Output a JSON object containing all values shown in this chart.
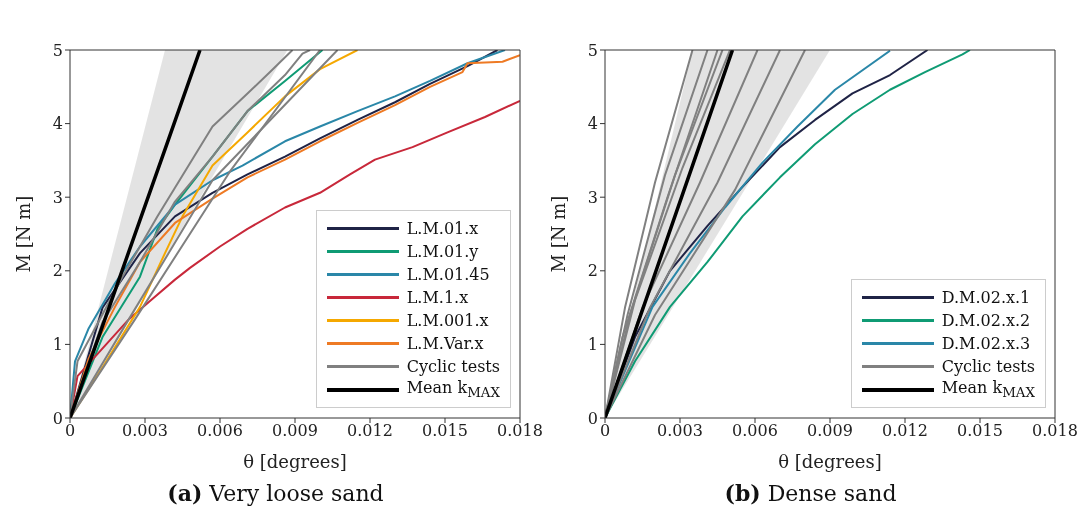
{
  "chart_data": [
    {
      "type": "line",
      "title": "(a) Very loose sand",
      "xlabel": "θ [degrees]",
      "ylabel": "M  [N m]",
      "xlim": [
        0,
        0.018
      ],
      "xticks": [
        0,
        0.003,
        0.006,
        0.009,
        0.012,
        0.015,
        0.018
      ],
      "ylim": [
        0,
        5
      ],
      "yticks": [
        0,
        1,
        2,
        3,
        4,
        5
      ],
      "legend": "bottom right",
      "series": [
        {
          "name": "L.M.01.x",
          "color": "#1f2346",
          "x": [
            0,
            0.0013,
            0.0028,
            0.0042,
            0.0057,
            0.0071,
            0.0086,
            0.01,
            0.0115,
            0.013,
            0.0144,
            0.0159,
            0.0171
          ],
          "values": [
            0,
            1.5,
            2.24,
            2.74,
            3.06,
            3.31,
            3.55,
            3.8,
            4.05,
            4.29,
            4.54,
            4.78,
            5
          ]
        },
        {
          "name": "L.M.01.y",
          "color": "#0f9b74",
          "x": [
            0,
            0.0013,
            0.0028,
            0.0035,
            0.0042,
            0.0057,
            0.0071,
            0.0086,
            0.0101
          ],
          "values": [
            0,
            1.1,
            1.92,
            2.57,
            2.9,
            3.55,
            4.17,
            4.58,
            5
          ]
        },
        {
          "name": "L.M.01.45",
          "color": "#2a87a8",
          "x": [
            0,
            0.0002,
            0.00075,
            0.0018,
            0.0028,
            0.0042,
            0.0057,
            0.0069,
            0.0086,
            0.01,
            0.0115,
            0.013,
            0.0144,
            0.0159,
            0.0174
          ],
          "values": [
            0,
            0.77,
            1.22,
            1.83,
            2.33,
            2.9,
            3.23,
            3.43,
            3.76,
            3.96,
            4.17,
            4.37,
            4.58,
            4.82,
            5
          ]
        },
        {
          "name": "L.M.1.x",
          "color": "#c8283a",
          "x": [
            0,
            0.0003,
            0.00235,
            0.0032,
            0.0042,
            0.0048,
            0.006,
            0.0071,
            0.0086,
            0.01,
            0.0112,
            0.0122,
            0.0137,
            0.0151,
            0.0166,
            0.018
          ],
          "values": [
            0,
            0.57,
            1.34,
            1.59,
            1.88,
            2.04,
            2.33,
            2.57,
            2.86,
            3.06,
            3.31,
            3.51,
            3.68,
            3.88,
            4.09,
            4.31
          ]
        },
        {
          "name": "L.M.001.x",
          "color": "#f5a800",
          "x": [
            0,
            0.0013,
            0.0028,
            0.0038,
            0.0045,
            0.0057,
            0.0071,
            0.0086,
            0.01,
            0.0115
          ],
          "values": [
            0,
            0.69,
            1.51,
            2.24,
            2.74,
            3.43,
            3.88,
            4.37,
            4.74,
            5
          ]
        },
        {
          "name": "L.M.Var.x",
          "color": "#ee7a24",
          "x": [
            0,
            0.00075,
            0.0018,
            0.0028,
            0.0042,
            0.0057,
            0.0071,
            0.0086,
            0.01,
            0.0115,
            0.013,
            0.0144,
            0.0157,
            0.0159,
            0.0173,
            0.018
          ],
          "values": [
            0,
            0.81,
            1.51,
            2.12,
            2.65,
            2.98,
            3.27,
            3.51,
            3.76,
            4.01,
            4.25,
            4.5,
            4.7,
            4.82,
            4.84,
            4.93
          ]
        },
        {
          "name": "Cyclic tests",
          "color": "#808080",
          "x": [
            0,
            0.0003,
            0.0021,
            0.0035,
            0.0057,
            0.0071,
            0.008,
            0.0089
          ],
          "values": [
            0,
            0.77,
            1.92,
            2.74,
            3.96,
            4.41,
            4.7,
            5
          ]
        },
        {
          "color": "#808080",
          "x": [
            0,
            0.0013,
            0.0028,
            0.0042,
            0.0057,
            0.0071,
            0.0086,
            0.0093,
            0.0096
          ],
          "values": [
            0,
            1.3,
            2.12,
            2.94,
            3.55,
            4.17,
            4.66,
            4.95,
            5
          ]
        },
        {
          "color": "#808080",
          "x": [
            0,
            0.00235,
            0.0057,
            0.0107
          ],
          "values": [
            0,
            1.34,
            3.23,
            5
          ]
        },
        {
          "color": "#808080",
          "x": [
            0,
            0.0026,
            0.0064,
            0.01
          ],
          "values": [
            0,
            1.34,
            3.35,
            5
          ]
        },
        {
          "name": "Mean k$_{MAX}$",
          "color": "#000000",
          "x": [
            0,
            0.0038,
            0.0052,
            0.0087
          ],
          "values": [
            0,
            3.65,
            5,
            null
          ],
          "lower": [
            0,
            2.18,
            2.99,
            5
          ],
          "upper": [
            0,
            5,
            5,
            5
          ]
        }
      ]
    },
    {
      "type": "line",
      "title": "(b) Dense sand",
      "xlabel": "θ [degrees]",
      "ylabel": "M  [N m]",
      "xlim": [
        0,
        0.018
      ],
      "xticks": [
        0,
        0.003,
        0.006,
        0.009,
        0.012,
        0.015,
        0.018
      ],
      "ylim": [
        0,
        5
      ],
      "yticks": [
        0,
        1,
        2,
        3,
        4,
        5
      ],
      "legend": "bottom right",
      "series": [
        {
          "name": "D.M.02.x.1",
          "color": "#1f2346",
          "x": [
            0,
            0.0012,
            0.0026,
            0.0041,
            0.0055,
            0.007,
            0.0084,
            0.0099,
            0.0114,
            0.0129
          ],
          "values": [
            0,
            1.1,
            2,
            2.61,
            3.14,
            3.68,
            4.05,
            4.41,
            4.66,
            5
          ]
        },
        {
          "name": "D.M.02.x.2",
          "color": "#0f9b74",
          "x": [
            0,
            0.0012,
            0.0026,
            0.0041,
            0.0055,
            0.007,
            0.0084,
            0.0099,
            0.0114,
            0.0128,
            0.0143,
            0.0146
          ],
          "values": [
            0,
            0.77,
            1.51,
            2.12,
            2.74,
            3.27,
            3.72,
            4.13,
            4.46,
            4.7,
            4.94,
            5
          ]
        },
        {
          "name": "D.M.02.x.3",
          "color": "#2a87a8",
          "x": [
            0,
            0.0006,
            0.0019,
            0.0034,
            0.0048,
            0.0063,
            0.0077,
            0.0092,
            0.0114
          ],
          "values": [
            0,
            0.48,
            1.51,
            2.24,
            2.86,
            3.47,
            3.96,
            4.46,
            4.99
          ]
        },
        {
          "name": "Cyclic tests",
          "color": "#808080",
          "x": [
            0,
            0.0008,
            0.002,
            0.0035
          ],
          "values": [
            0,
            1.5,
            3.2,
            5
          ]
        },
        {
          "color": "#808080",
          "x": [
            0,
            0.0009,
            0.0024,
            0.0041
          ],
          "values": [
            0,
            1.4,
            3.3,
            5
          ]
        },
        {
          "color": "#808080",
          "x": [
            0,
            0.0007,
            0.0025,
            0.0045
          ],
          "values": [
            0,
            1.1,
            3,
            5
          ]
        },
        {
          "color": "#808080",
          "x": [
            0,
            0.001,
            0.0028,
            0.0047
          ],
          "values": [
            0,
            1.4,
            3.3,
            5
          ]
        },
        {
          "color": "#808080",
          "x": [
            0,
            0.0012,
            0.0031,
            0.005
          ],
          "values": [
            0,
            1.6,
            3.4,
            5
          ]
        },
        {
          "color": "#808080",
          "x": [
            0,
            0.0015,
            0.0038,
            0.0061
          ],
          "values": [
            0,
            1.5,
            3.2,
            5
          ]
        },
        {
          "color": "#808080",
          "x": [
            0,
            0.0018,
            0.0045,
            0.007
          ],
          "values": [
            0,
            1.5,
            3.2,
            5
          ]
        },
        {
          "color": "#808080",
          "x": [
            0,
            0.002,
            0.0052,
            0.008
          ],
          "values": [
            0,
            1.4,
            3.1,
            5
          ]
        },
        {
          "name": "Mean k$_{MAX}$",
          "color": "#000000",
          "x": [
            0,
            0.0035,
            0.0051,
            0.009
          ],
          "values": [
            0,
            3.43,
            5,
            null
          ],
          "lower": [
            0,
            1.94,
            2.83,
            5
          ],
          "upper": [
            0,
            5,
            5,
            5
          ]
        }
      ]
    }
  ]
}
